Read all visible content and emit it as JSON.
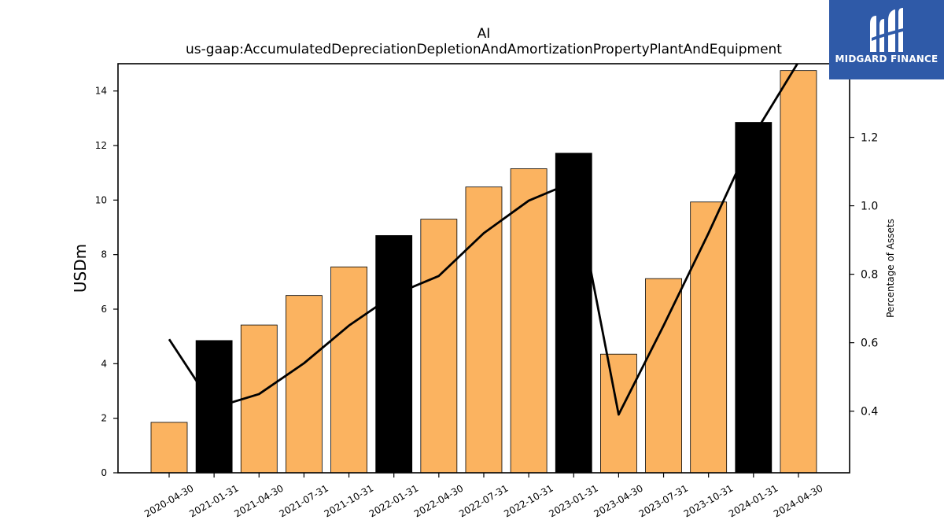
{
  "chart_data": {
    "type": "bar",
    "title": "AI",
    "subtitle": "us-gaap:AccumulatedDepreciationDepletionAndAmortizationPropertyPlantAndEquipment",
    "ylabel": "USDm",
    "y2label": "Percentage of Assets",
    "ylim": [
      0,
      15
    ],
    "y2lim": [
      0.22,
      1.415
    ],
    "yticks": [
      0,
      2,
      4,
      6,
      8,
      10,
      12,
      14
    ],
    "y2ticks": [
      0.4,
      0.6,
      0.8,
      1.0,
      1.2
    ],
    "categories": [
      "2020-04-30",
      "2021-01-31",
      "2021-04-30",
      "2021-07-31",
      "2021-10-31",
      "2022-01-31",
      "2022-04-30",
      "2022-07-31",
      "2022-10-31",
      "2023-01-31",
      "2023-04-30",
      "2023-07-31",
      "2023-10-31",
      "2024-01-31",
      "2024-04-30"
    ],
    "series": [
      {
        "type": "bar",
        "values": [
          1.85,
          4.85,
          5.42,
          6.5,
          7.55,
          8.7,
          9.3,
          10.48,
          11.15,
          11.72,
          4.35,
          7.12,
          9.93,
          12.85,
          14.75
        ]
      },
      {
        "type": "line",
        "axis": "right",
        "values": [
          0.61,
          0.41,
          0.45,
          0.54,
          0.65,
          0.74,
          0.795,
          0.92,
          1.015,
          1.07,
          0.39,
          0.65,
          0.92,
          1.205,
          1.42
        ]
      }
    ],
    "highlight_categories": [
      "2021-01-31",
      "2022-01-31",
      "2023-01-31",
      "2024-01-31"
    ],
    "colors": {
      "bar": "#fbb360",
      "highlight": "#000000",
      "line": "#000000",
      "edge": "#000000"
    },
    "grid": false
  },
  "logo": {
    "text": "MIDGARD FINANCE",
    "background": "#2f5aa8"
  }
}
